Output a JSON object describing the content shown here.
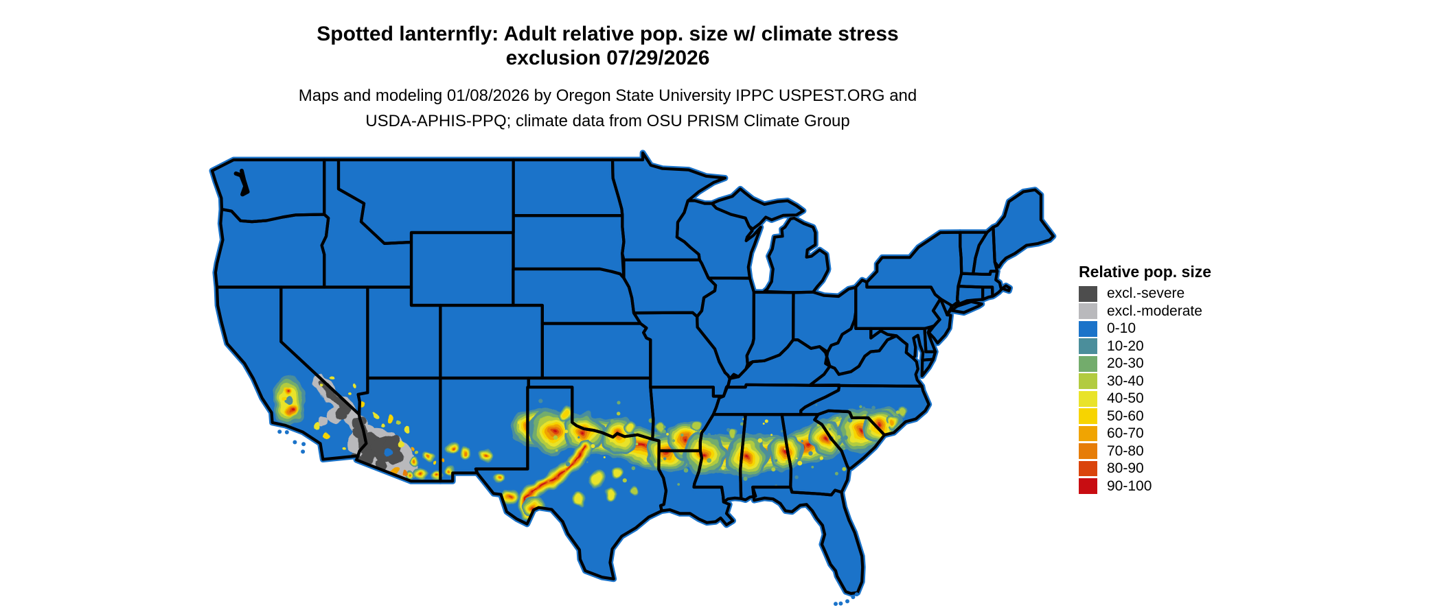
{
  "title": {
    "line1": "Spotted lanternfly: Adult relative pop. size w/ climate stress",
    "line2": "exclusion 07/29/2026"
  },
  "subtitle": {
    "line1": "Maps and modeling 01/08/2026 by Oregon State University IPPC USPEST.ORG and",
    "line2": "USDA-APHIS-PPQ; climate data from OSU PRISM Climate Group"
  },
  "legend": {
    "title": "Relative pop. size",
    "items": [
      {
        "label": "excl.-severe",
        "color": "#4D4D4D"
      },
      {
        "label": "excl.-moderate",
        "color": "#B9B9BC"
      },
      {
        "label": "0-10",
        "color": "#1B73C9"
      },
      {
        "label": "10-20",
        "color": "#4B8E9B"
      },
      {
        "label": "20-30",
        "color": "#73AC6C"
      },
      {
        "label": "30-40",
        "color": "#B2CB3F"
      },
      {
        "label": "40-50",
        "color": "#E9E32A"
      },
      {
        "label": "50-60",
        "color": "#F7D400"
      },
      {
        "label": "60-70",
        "color": "#F0A402"
      },
      {
        "label": "70-80",
        "color": "#E67D08"
      },
      {
        "label": "80-90",
        "color": "#DA440C"
      },
      {
        "label": "90-100",
        "color": "#C80D12"
      }
    ]
  },
  "map": {
    "base_fill": "#1B73C9",
    "state_border_color": "#000000",
    "background": "#FFFFFF"
  }
}
